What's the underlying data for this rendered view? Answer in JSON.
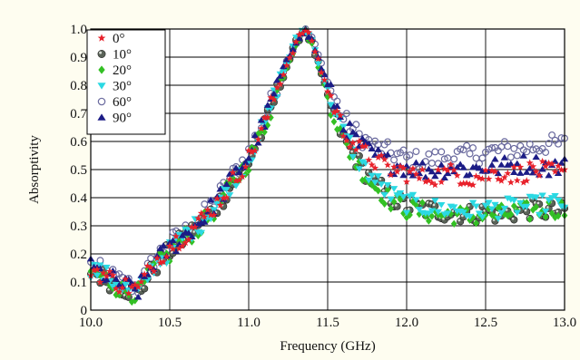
{
  "chart_data": {
    "type": "scatter",
    "xlabel": "Frequency (GHz)",
    "ylabel": "Absorptivity",
    "xlim": [
      10.0,
      13.0
    ],
    "ylim": [
      0.0,
      1.0
    ],
    "x_ticks": [
      10.0,
      10.5,
      11.0,
      11.5,
      12.0,
      12.5,
      13.0
    ],
    "x_tick_labels": [
      "10.0",
      "10.5",
      "11.0",
      "11.5",
      "12.0",
      "12.5",
      "13.0"
    ],
    "y_ticks": [
      0,
      0.1,
      0.2,
      0.3,
      0.4,
      0.5,
      0.6,
      0.7,
      0.8,
      0.9,
      1.0
    ],
    "y_tick_labels": [
      "0",
      "0.1",
      "0.2",
      "0.3",
      "0.4",
      "0.5",
      "0.6",
      "0.7",
      "0.8",
      "0.9",
      "1.0"
    ],
    "grid": true,
    "legend_position": "top-left",
    "x": [
      10.0,
      10.1,
      10.2,
      10.3,
      10.4,
      10.5,
      10.6,
      10.7,
      10.8,
      10.9,
      11.0,
      11.1,
      11.2,
      11.3,
      11.35,
      11.4,
      11.5,
      11.6,
      11.7,
      11.8,
      11.9,
      12.0,
      12.1,
      12.2,
      12.3,
      12.4,
      12.5,
      12.6,
      12.7,
      12.8,
      12.9,
      13.0
    ],
    "series": [
      {
        "name": "0°",
        "marker": "star",
        "color": "#e8212b",
        "values": [
          0.15,
          0.12,
          0.09,
          0.07,
          0.17,
          0.23,
          0.27,
          0.32,
          0.38,
          0.46,
          0.54,
          0.66,
          0.82,
          0.95,
          1.0,
          0.96,
          0.78,
          0.64,
          0.57,
          0.53,
          0.5,
          0.49,
          0.47,
          0.48,
          0.49,
          0.47,
          0.48,
          0.49,
          0.48,
          0.5,
          0.49,
          0.48
        ]
      },
      {
        "name": "10°",
        "marker": "sphere",
        "color": "#5a6358",
        "values": [
          0.14,
          0.11,
          0.08,
          0.06,
          0.15,
          0.21,
          0.26,
          0.31,
          0.37,
          0.45,
          0.53,
          0.65,
          0.81,
          0.95,
          1.0,
          0.95,
          0.76,
          0.61,
          0.52,
          0.45,
          0.4,
          0.37,
          0.36,
          0.35,
          0.35,
          0.34,
          0.35,
          0.34,
          0.35,
          0.36,
          0.35,
          0.35
        ]
      },
      {
        "name": "20°",
        "marker": "diamond",
        "color": "#33c024",
        "values": [
          0.14,
          0.11,
          0.07,
          0.06,
          0.15,
          0.2,
          0.26,
          0.3,
          0.37,
          0.45,
          0.53,
          0.65,
          0.81,
          0.95,
          1.0,
          0.95,
          0.76,
          0.6,
          0.51,
          0.44,
          0.39,
          0.36,
          0.35,
          0.34,
          0.34,
          0.33,
          0.34,
          0.34,
          0.35,
          0.35,
          0.36,
          0.36
        ]
      },
      {
        "name": "30°",
        "marker": "triangle-down",
        "color": "#2bd9e3",
        "values": [
          0.15,
          0.12,
          0.08,
          0.06,
          0.16,
          0.21,
          0.27,
          0.31,
          0.38,
          0.46,
          0.54,
          0.66,
          0.82,
          0.96,
          1.0,
          0.96,
          0.78,
          0.63,
          0.53,
          0.46,
          0.41,
          0.38,
          0.37,
          0.36,
          0.36,
          0.35,
          0.36,
          0.36,
          0.37,
          0.37,
          0.38,
          0.38
        ]
      },
      {
        "name": "60°",
        "marker": "circle-open",
        "color": "#6a6a9e",
        "values": [
          0.16,
          0.13,
          0.1,
          0.08,
          0.18,
          0.24,
          0.28,
          0.33,
          0.4,
          0.48,
          0.56,
          0.68,
          0.83,
          0.96,
          1.0,
          0.97,
          0.81,
          0.68,
          0.62,
          0.58,
          0.56,
          0.54,
          0.53,
          0.54,
          0.55,
          0.55,
          0.56,
          0.57,
          0.57,
          0.58,
          0.59,
          0.59
        ]
      },
      {
        "name": "90°",
        "marker": "triangle-up",
        "color": "#1c1c86",
        "values": [
          0.15,
          0.12,
          0.09,
          0.07,
          0.17,
          0.22,
          0.27,
          0.32,
          0.39,
          0.47,
          0.55,
          0.67,
          0.83,
          0.96,
          1.0,
          0.96,
          0.8,
          0.66,
          0.59,
          0.55,
          0.52,
          0.51,
          0.5,
          0.5,
          0.51,
          0.5,
          0.51,
          0.51,
          0.52,
          0.52,
          0.51,
          0.51
        ]
      }
    ]
  }
}
